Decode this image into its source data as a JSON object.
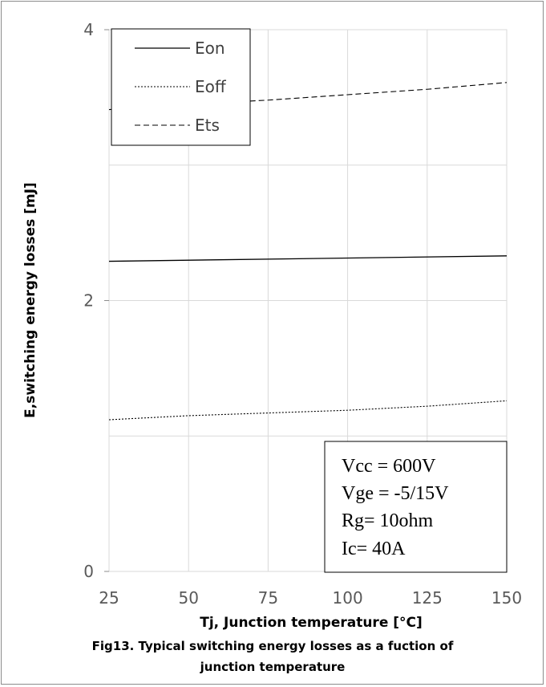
{
  "chart_data": {
    "type": "line",
    "xlabel": "Tj, Junction temperature [°C]",
    "ylabel": "E,switching energy losses [mJ]",
    "caption_lines": [
      "Fig13. Typical switching energy losses as a fuction of",
      "junction temperature"
    ],
    "x_ticks": [
      "25",
      "50",
      "75",
      "100",
      "125",
      "150"
    ],
    "y_ticks": [
      "0",
      "2",
      "4"
    ],
    "xlim": [
      25,
      150
    ],
    "ylim": [
      0,
      4
    ],
    "grid": true,
    "legend_position": "top-left",
    "series": [
      {
        "name": "Eon",
        "style": "solid",
        "x": [
          25,
          150
        ],
        "y": [
          2.29,
          2.33
        ]
      },
      {
        "name": "Eoff",
        "style": "dotted",
        "x": [
          25,
          50,
          75,
          100,
          125,
          150
        ],
        "y": [
          1.12,
          1.15,
          1.17,
          1.19,
          1.22,
          1.26
        ]
      },
      {
        "name": "Ets",
        "style": "dashed",
        "x": [
          25,
          50,
          75,
          100,
          125,
          150
        ],
        "y": [
          3.41,
          3.45,
          3.48,
          3.52,
          3.56,
          3.61
        ]
      }
    ],
    "conditions": [
      "Vcc = 600V",
      "Vge = -5/15V",
      "Rg= 10ohm",
      "Ic= 40A"
    ],
    "colors": {
      "line": "#000000",
      "grid": "#d9d9d9",
      "tick_text": "#595959"
    }
  }
}
